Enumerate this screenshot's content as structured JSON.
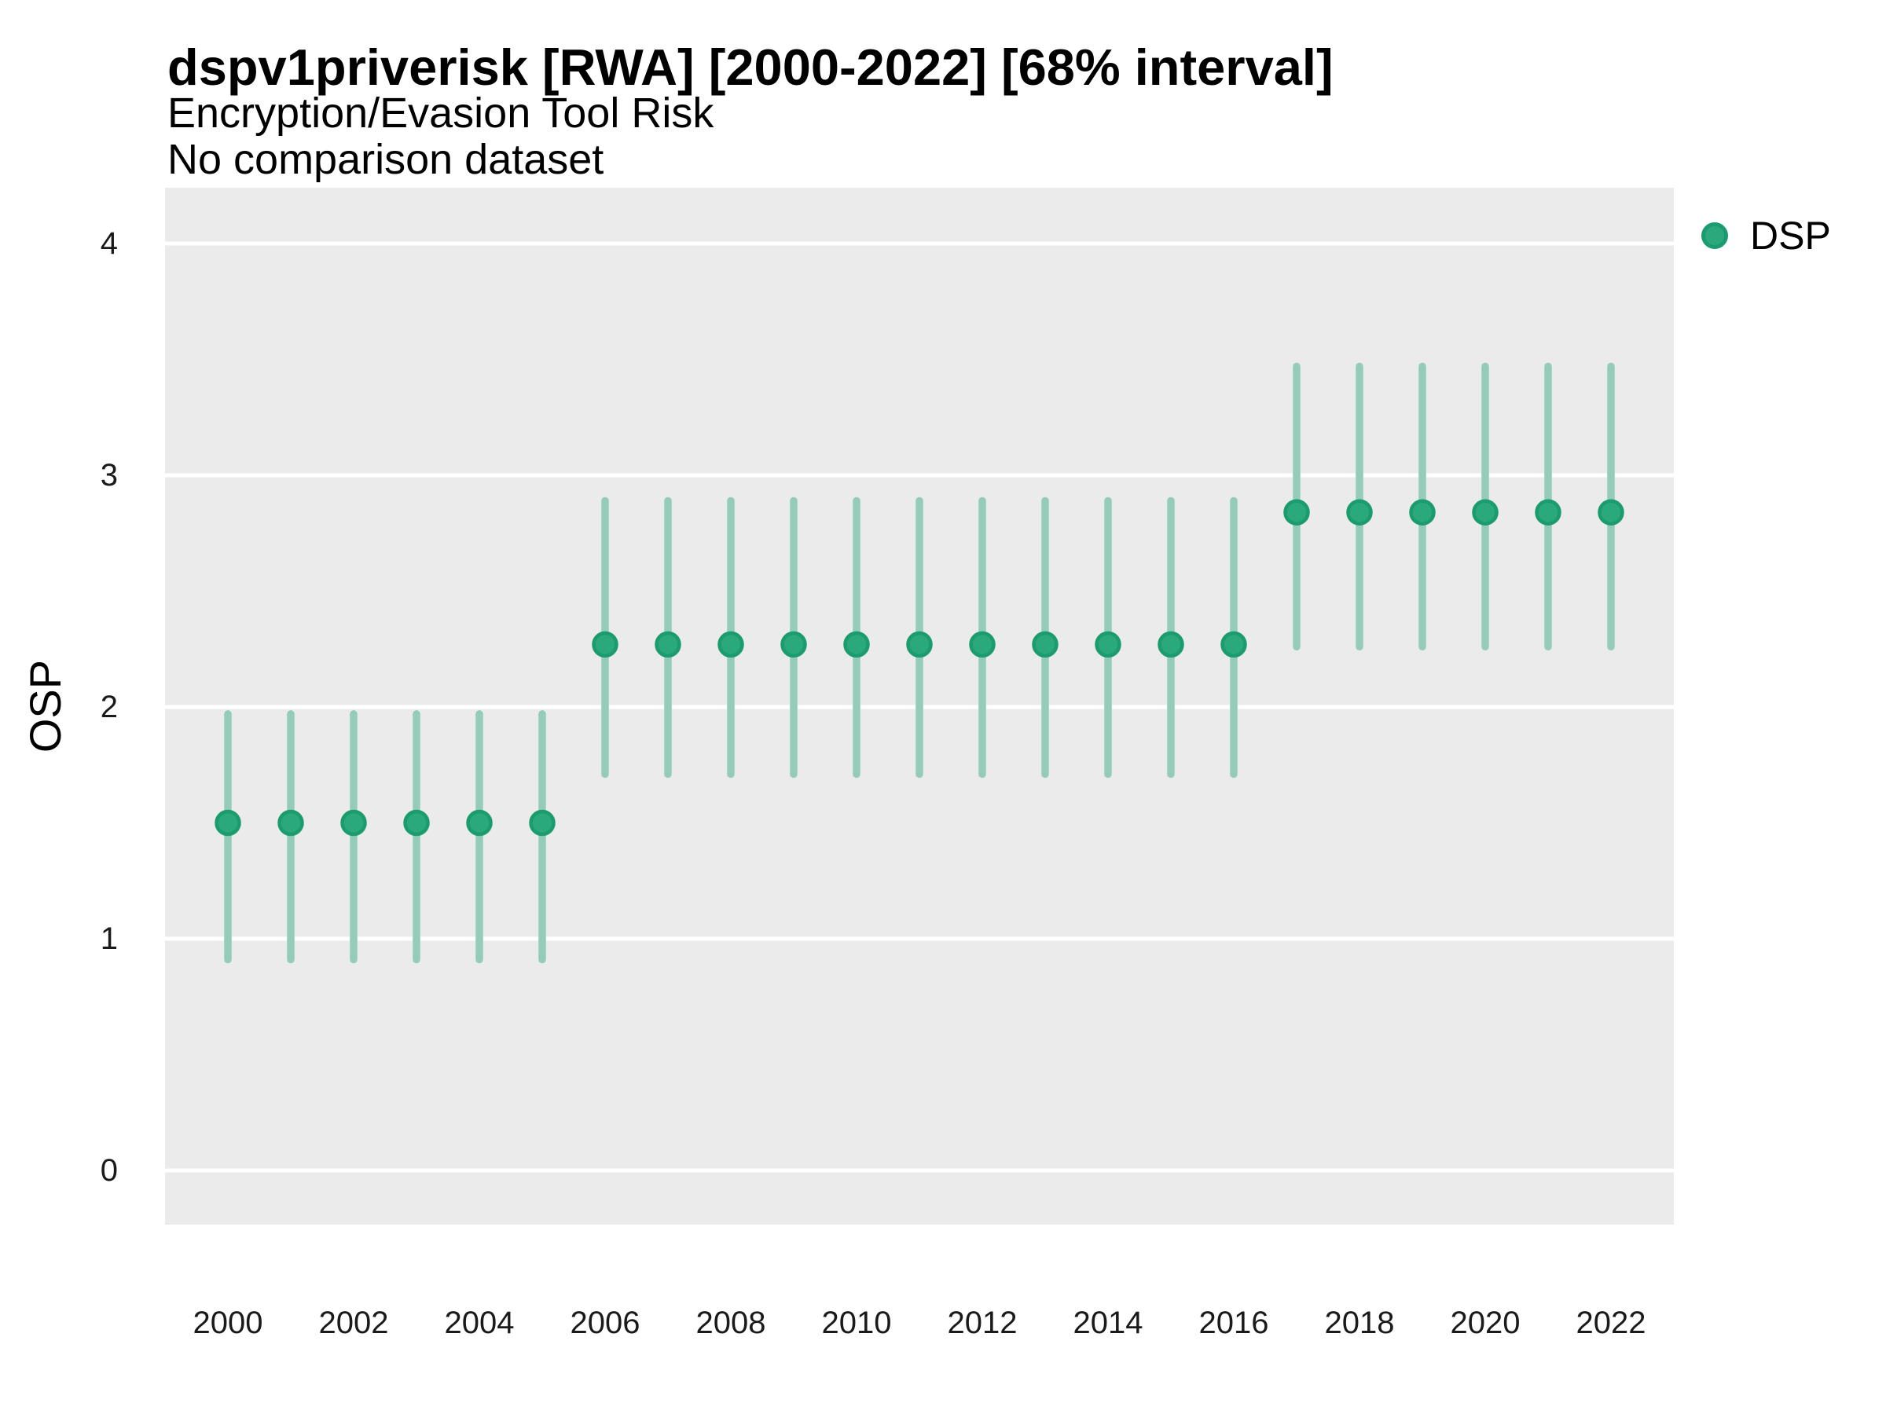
{
  "header": {
    "title": "dspv1priverisk [RWA] [2000-2022] [68% interval]",
    "subtitle": "Encryption/Evasion Tool Risk",
    "comparison_note": "No comparison dataset"
  },
  "legend": {
    "label": "DSP"
  },
  "axes": {
    "y_label": "OSP",
    "y_ticks": [
      0,
      1,
      2,
      3,
      4
    ],
    "x_ticks": [
      2000,
      2002,
      2004,
      2006,
      2008,
      2010,
      2012,
      2014,
      2016,
      2018,
      2020,
      2022
    ]
  },
  "colors": {
    "panel_bg": "#ebebeb",
    "gridline": "#ffffff",
    "point_fill": "#2ba87c",
    "point_stroke": "#1a9c6f",
    "interval_line": "#94ccba",
    "text": "#000000",
    "tick_text": "#1a1a1a"
  },
  "chart_data": {
    "type": "pointrange",
    "title": "dspv1priverisk [RWA] [2000-2022] [68% interval]",
    "subtitle": "Encryption/Evasion Tool Risk",
    "note": "No comparison dataset",
    "interval": "68%",
    "xlabel": "",
    "ylabel": "OSP",
    "legend_position": "right",
    "grid": "major-horizontal-white-on-gray",
    "ylim": [
      -0.32,
      4.23
    ],
    "xlim": [
      1999,
      2023
    ],
    "x": [
      2000,
      2001,
      2002,
      2003,
      2004,
      2005,
      2006,
      2007,
      2008,
      2009,
      2010,
      2011,
      2012,
      2013,
      2014,
      2015,
      2016,
      2017,
      2018,
      2019,
      2020,
      2021,
      2022
    ],
    "series": [
      {
        "name": "DSP",
        "points": [
          1.5,
          1.5,
          1.5,
          1.5,
          1.5,
          1.5,
          2.27,
          2.27,
          2.27,
          2.27,
          2.27,
          2.27,
          2.27,
          2.27,
          2.27,
          2.27,
          2.27,
          2.84,
          2.84,
          2.84,
          2.84,
          2.84,
          2.84
        ],
        "lower": [
          0.91,
          0.91,
          0.91,
          0.91,
          0.91,
          0.91,
          1.71,
          1.71,
          1.71,
          1.71,
          1.71,
          1.71,
          1.71,
          1.71,
          1.71,
          1.71,
          1.71,
          2.26,
          2.26,
          2.26,
          2.26,
          2.26,
          2.26
        ],
        "upper": [
          1.97,
          1.97,
          1.97,
          1.97,
          1.97,
          1.97,
          2.89,
          2.89,
          2.89,
          2.89,
          2.89,
          2.89,
          2.89,
          2.89,
          2.89,
          2.89,
          2.89,
          3.47,
          3.47,
          3.47,
          3.47,
          3.47,
          3.47
        ]
      }
    ]
  }
}
